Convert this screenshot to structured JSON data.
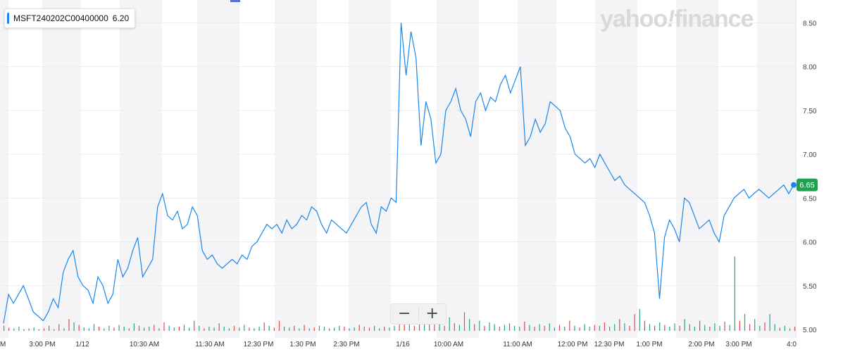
{
  "legend": {
    "symbol": "MSFT240202C00400000",
    "value": "6.20",
    "color": "#1a86ec"
  },
  "watermark": {
    "brand": "yahoo",
    "bang": "!",
    "product": "finance"
  },
  "zoom": {
    "minus_label": "−",
    "plus_label": "+"
  },
  "current_price_label": "6.65",
  "colors": {
    "line": "#1a86ec",
    "up_volume": "#26a684",
    "down_volume": "#e24a4a",
    "price_badge": "#21a04f",
    "session_band": "#f4f4f6"
  },
  "chart_data": {
    "type": "line",
    "title": "",
    "xlabel": "",
    "ylabel": "",
    "ylim": [
      5.0,
      8.6
    ],
    "yticks": [
      5.0,
      5.5,
      6.0,
      6.5,
      7.0,
      7.5,
      8.0,
      8.5
    ],
    "ytick_labels": [
      "5.00",
      "5.50",
      "6.00",
      "6.50",
      "7.00",
      "7.50",
      "8.00",
      "8.50"
    ],
    "xtick_labels": [
      "M",
      "3:00 PM",
      "1/12",
      "10:30 AM",
      "11:30 AM",
      "12:30 PM",
      "1:30 PM",
      "2:30 PM",
      "1/16",
      "10:00 AM",
      "11:00 AM",
      "12:00 PM",
      "12:30 PM",
      "1:00 PM",
      "2:00 PM",
      "3:00 PM",
      "4:0"
    ],
    "grid": true,
    "series": [
      {
        "values": [
          5.07,
          5.4,
          5.3,
          5.4,
          5.5,
          5.35,
          5.2,
          5.15,
          5.1,
          5.2,
          5.35,
          5.25,
          5.65,
          5.8,
          5.9,
          5.6,
          5.5,
          5.45,
          5.3,
          5.6,
          5.5,
          5.3,
          5.4,
          5.8,
          5.6,
          5.7,
          5.9,
          6.05,
          5.6,
          5.7,
          5.8,
          6.4,
          6.55,
          6.3,
          6.25,
          6.35,
          6.15,
          6.2,
          6.4,
          6.3,
          5.9,
          5.8,
          5.85,
          5.75,
          5.7,
          5.75,
          5.8,
          5.75,
          5.85,
          5.8,
          5.95,
          6.0,
          6.1,
          6.2,
          6.15,
          6.2,
          6.1,
          6.25,
          6.15,
          6.2,
          6.3,
          6.25,
          6.4,
          6.35,
          6.2,
          6.1,
          6.25,
          6.2,
          6.15,
          6.1,
          6.2,
          6.3,
          6.4,
          6.45,
          6.2,
          6.1,
          6.4,
          6.35,
          6.5,
          6.45,
          8.5,
          7.9,
          8.4,
          8.1,
          7.1,
          7.6,
          7.4,
          6.9,
          7.0,
          7.5,
          7.6,
          7.75,
          7.5,
          7.4,
          7.2,
          7.6,
          7.7,
          7.5,
          7.65,
          7.6,
          7.8,
          7.9,
          7.7,
          7.85,
          8.0,
          7.1,
          7.2,
          7.4,
          7.25,
          7.35,
          7.6,
          7.55,
          7.5,
          7.3,
          7.2,
          7.0,
          6.95,
          6.9,
          6.95,
          6.85,
          7.0,
          6.9,
          6.8,
          6.7,
          6.75,
          6.65,
          6.6,
          6.55,
          6.5,
          6.45,
          6.3,
          6.1,
          5.35,
          6.05,
          6.25,
          6.15,
          6.0,
          6.5,
          6.45,
          6.3,
          6.15,
          6.2,
          6.25,
          6.1,
          6.0,
          6.3,
          6.4,
          6.5,
          6.55,
          6.6,
          6.5,
          6.55,
          6.6,
          6.55,
          6.5,
          6.55,
          6.6,
          6.65,
          6.55,
          6.65
        ],
        "color": "#1a86ec"
      }
    ],
    "volume": [
      {
        "v": 6,
        "up": true
      },
      {
        "v": 4,
        "up": false
      },
      {
        "v": 3,
        "up": true
      },
      {
        "v": 5,
        "up": true
      },
      {
        "v": 2,
        "up": false
      },
      {
        "v": 3,
        "up": true
      },
      {
        "v": 4,
        "up": true
      },
      {
        "v": 2,
        "up": true
      },
      {
        "v": 3,
        "up": false
      },
      {
        "v": 6,
        "up": false
      },
      {
        "v": 2,
        "up": true
      },
      {
        "v": 8,
        "up": false
      },
      {
        "v": 3,
        "up": true
      },
      {
        "v": 14,
        "up": false
      },
      {
        "v": 10,
        "up": true
      },
      {
        "v": 7,
        "up": false
      },
      {
        "v": 4,
        "up": true
      },
      {
        "v": 3,
        "up": true
      },
      {
        "v": 8,
        "up": true
      },
      {
        "v": 5,
        "up": false
      },
      {
        "v": 3,
        "up": true
      },
      {
        "v": 6,
        "up": true
      },
      {
        "v": 4,
        "up": false
      },
      {
        "v": 7,
        "up": true
      },
      {
        "v": 5,
        "up": true
      },
      {
        "v": 3,
        "up": false
      },
      {
        "v": 9,
        "up": true
      },
      {
        "v": 6,
        "up": false
      },
      {
        "v": 4,
        "up": true
      },
      {
        "v": 5,
        "up": true
      },
      {
        "v": 7,
        "up": false
      },
      {
        "v": 3,
        "up": true
      },
      {
        "v": 10,
        "up": false
      },
      {
        "v": 6,
        "up": true
      },
      {
        "v": 4,
        "up": true
      },
      {
        "v": 5,
        "up": false
      },
      {
        "v": 7,
        "up": true
      },
      {
        "v": 4,
        "up": true
      },
      {
        "v": 12,
        "up": false
      },
      {
        "v": 6,
        "up": true
      },
      {
        "v": 3,
        "up": false
      },
      {
        "v": 5,
        "up": true
      },
      {
        "v": 4,
        "up": true
      },
      {
        "v": 9,
        "up": false
      },
      {
        "v": 5,
        "up": true
      },
      {
        "v": 3,
        "up": true
      },
      {
        "v": 6,
        "up": false
      },
      {
        "v": 4,
        "up": true
      },
      {
        "v": 7,
        "up": true
      },
      {
        "v": 4,
        "up": false
      },
      {
        "v": 3,
        "up": true
      },
      {
        "v": 5,
        "up": true
      },
      {
        "v": 10,
        "up": false
      },
      {
        "v": 6,
        "up": true
      },
      {
        "v": 4,
        "up": false
      },
      {
        "v": 12,
        "up": false
      },
      {
        "v": 5,
        "up": true
      },
      {
        "v": 4,
        "up": true
      },
      {
        "v": 6,
        "up": false
      },
      {
        "v": 3,
        "up": true
      },
      {
        "v": 7,
        "up": false
      },
      {
        "v": 3,
        "up": true
      },
      {
        "v": 4,
        "up": false
      },
      {
        "v": 6,
        "up": true
      },
      {
        "v": 5,
        "up": true
      },
      {
        "v": 3,
        "up": false
      },
      {
        "v": 4,
        "up": true
      },
      {
        "v": 6,
        "up": true
      },
      {
        "v": 5,
        "up": false
      },
      {
        "v": 3,
        "up": true
      },
      {
        "v": 4,
        "up": true
      },
      {
        "v": 7,
        "up": false
      },
      {
        "v": 5,
        "up": true
      },
      {
        "v": 4,
        "up": false
      },
      {
        "v": 6,
        "up": true
      },
      {
        "v": 3,
        "up": true
      },
      {
        "v": 5,
        "up": false
      },
      {
        "v": 4,
        "up": true
      },
      {
        "v": 6,
        "up": true
      },
      {
        "v": 8,
        "up": false
      },
      {
        "v": 16,
        "up": false
      },
      {
        "v": 10,
        "up": true
      },
      {
        "v": 6,
        "up": false
      },
      {
        "v": 14,
        "up": false
      },
      {
        "v": 12,
        "up": true
      },
      {
        "v": 8,
        "up": false
      },
      {
        "v": 18,
        "up": false
      },
      {
        "v": 10,
        "up": true
      },
      {
        "v": 6,
        "up": false
      },
      {
        "v": 16,
        "up": true
      },
      {
        "v": 9,
        "up": false
      },
      {
        "v": 7,
        "up": true
      },
      {
        "v": 22,
        "up": false
      },
      {
        "v": 14,
        "up": true
      },
      {
        "v": 8,
        "up": false
      },
      {
        "v": 12,
        "up": true
      },
      {
        "v": 6,
        "up": false
      },
      {
        "v": 10,
        "up": true
      },
      {
        "v": 8,
        "up": true
      },
      {
        "v": 5,
        "up": false
      },
      {
        "v": 7,
        "up": true
      },
      {
        "v": 9,
        "up": false
      },
      {
        "v": 6,
        "up": true
      },
      {
        "v": 5,
        "up": true
      },
      {
        "v": 11,
        "up": false
      },
      {
        "v": 7,
        "up": true
      },
      {
        "v": 5,
        "up": false
      },
      {
        "v": 8,
        "up": true
      },
      {
        "v": 6,
        "up": false
      },
      {
        "v": 9,
        "up": true
      },
      {
        "v": 4,
        "up": true
      },
      {
        "v": 7,
        "up": false
      },
      {
        "v": 5,
        "up": true
      },
      {
        "v": 12,
        "up": false
      },
      {
        "v": 6,
        "up": true
      },
      {
        "v": 4,
        "up": false
      },
      {
        "v": 8,
        "up": true
      },
      {
        "v": 5,
        "up": true
      },
      {
        "v": 7,
        "up": false
      },
      {
        "v": 6,
        "up": true
      },
      {
        "v": 10,
        "up": false
      },
      {
        "v": 5,
        "up": true
      },
      {
        "v": 8,
        "up": true
      },
      {
        "v": 14,
        "up": false
      },
      {
        "v": 9,
        "up": true
      },
      {
        "v": 6,
        "up": false
      },
      {
        "v": 20,
        "up": false
      },
      {
        "v": 26,
        "up": true
      },
      {
        "v": 12,
        "up": false
      },
      {
        "v": 8,
        "up": true
      },
      {
        "v": 6,
        "up": false
      },
      {
        "v": 10,
        "up": true
      },
      {
        "v": 7,
        "up": false
      },
      {
        "v": 5,
        "up": true
      },
      {
        "v": 9,
        "up": true
      },
      {
        "v": 6,
        "up": false
      },
      {
        "v": 14,
        "up": true
      },
      {
        "v": 8,
        "up": false
      },
      {
        "v": 5,
        "up": true
      },
      {
        "v": 12,
        "up": false
      },
      {
        "v": 7,
        "up": true
      },
      {
        "v": 5,
        "up": false
      },
      {
        "v": 9,
        "up": true
      },
      {
        "v": 6,
        "up": true
      },
      {
        "v": 11,
        "up": false
      },
      {
        "v": 7,
        "up": true
      },
      {
        "v": 88,
        "up": true
      },
      {
        "v": 12,
        "up": false
      },
      {
        "v": 20,
        "up": true
      },
      {
        "v": 8,
        "up": false
      },
      {
        "v": 14,
        "up": true
      },
      {
        "v": 6,
        "up": true
      },
      {
        "v": 10,
        "up": false
      },
      {
        "v": 20,
        "up": true
      },
      {
        "v": 8,
        "up": true
      },
      {
        "v": 4,
        "up": false
      },
      {
        "v": 6,
        "up": true
      },
      {
        "v": 3,
        "up": true
      },
      {
        "v": 5,
        "up": false
      }
    ]
  }
}
